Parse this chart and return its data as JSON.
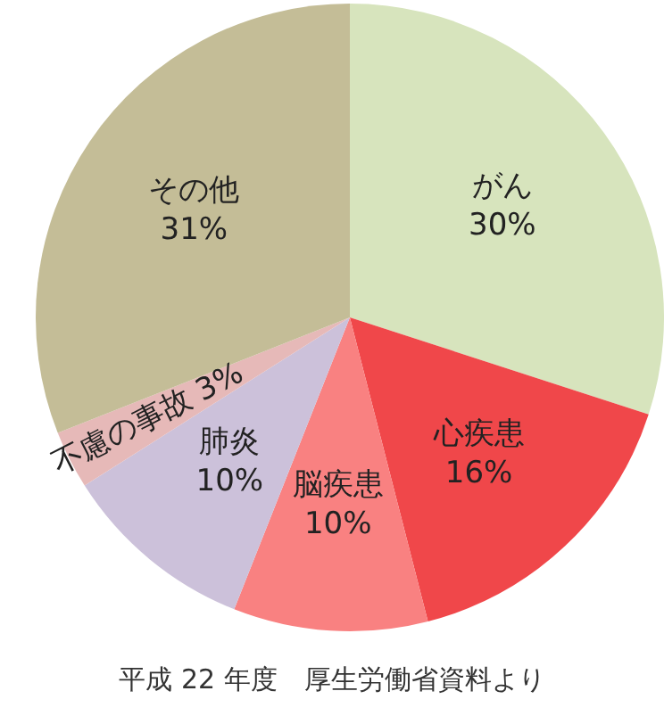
{
  "chart_data": {
    "type": "pie",
    "categories": [
      "がん",
      "心疾患",
      "脳疾患",
      "肺炎",
      "不慮の事故",
      "その他"
    ],
    "values": [
      30,
      16,
      10,
      10,
      3,
      31
    ],
    "value_labels": [
      "30%",
      "16%",
      "10%",
      "10%",
      "3%",
      "31%"
    ],
    "colors": [
      "#d7e4bd",
      "#f0474a",
      "#f98181",
      "#ccc1da",
      "#e6b9b8",
      "#c4bd97"
    ],
    "legend": false,
    "annotations": [
      "平成 22 年度　厚生労働省資料より"
    ]
  }
}
